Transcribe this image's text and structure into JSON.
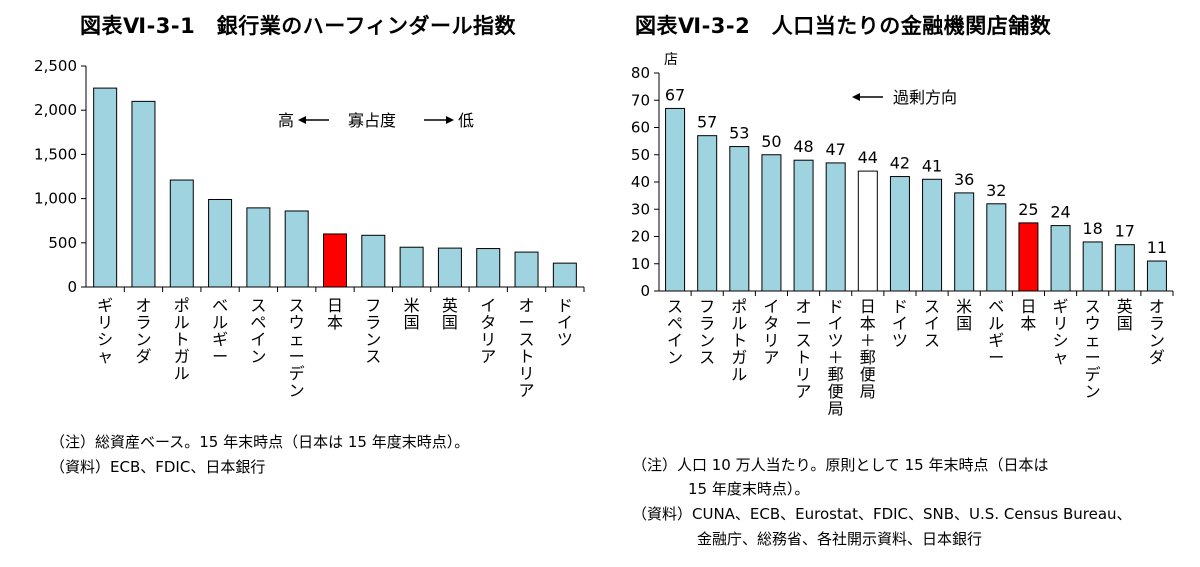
{
  "chart_data": [
    {
      "type": "bar",
      "title": "図表Ⅵ-3-1　銀行業のハーフィンダール指数",
      "categories": [
        "ギリシャ",
        "オランダ",
        "ポルトガル",
        "ベルギー",
        "スペイン",
        "スウェーデン",
        "日本",
        "フランス",
        "米国",
        "英国",
        "イタリア",
        "オーストリア",
        "ドイツ"
      ],
      "values": [
        2250,
        2100,
        1210,
        990,
        895,
        860,
        600,
        585,
        450,
        440,
        435,
        395,
        270
      ],
      "highlight": "日本",
      "highlight_color": "#ff0000",
      "bar_color": "#9fd3df",
      "ylim": [
        0,
        2500
      ],
      "yticks": [
        "0",
        "500",
        "1,000",
        "1,500",
        "2,000",
        "2,500"
      ],
      "ytick_values": [
        0,
        500,
        1000,
        1500,
        2000,
        2500
      ],
      "annotation": {
        "left": "高",
        "middle": "寡占度",
        "right": "低"
      },
      "grid": false
    },
    {
      "type": "bar",
      "title": "図表Ⅵ-3-2　人口当たりの金融機関店舗数",
      "ylabel": "店",
      "categories": [
        "スペイン",
        "フランス",
        "ポルトガル",
        "イタリア",
        "オーストリア",
        "ドイツ＋郵便局",
        "日本＋郵便局",
        "ドイツ",
        "スイス",
        "米国",
        "ベルギー",
        "日本",
        "ギリシャ",
        "スウェーデン",
        "英国",
        "オランダ"
      ],
      "values": [
        67,
        57,
        53,
        50,
        48,
        47,
        44,
        42,
        41,
        36,
        32,
        25,
        24,
        18,
        17,
        11
      ],
      "highlight": "日本",
      "highlight_color": "#ff0000",
      "outline_category": "日本＋郵便局",
      "bar_color": "#9fd3df",
      "ylim": [
        0,
        80
      ],
      "yticks": [
        "0",
        "10",
        "20",
        "30",
        "40",
        "50",
        "60",
        "70",
        "80"
      ],
      "ytick_values": [
        0,
        10,
        20,
        30,
        40,
        50,
        60,
        70,
        80
      ],
      "annotation": {
        "text": "過剰方向"
      },
      "grid": false
    }
  ],
  "notes_left": [
    "（注）総資産ベース。15 年末時点（日本は 15 年度末時点）。",
    "（資料）ECB、FDIC、日本銀行"
  ],
  "notes_right": [
    "（注）人口 10 万人当たり。原則として 15 年末時点（日本は",
    "15 年度末時点）。",
    "（資料）CUNA、ECB、Eurostat、FDIC、SNB、U.S. Census Bureau、",
    "金融庁、総務省、各社開示資料、日本銀行"
  ]
}
